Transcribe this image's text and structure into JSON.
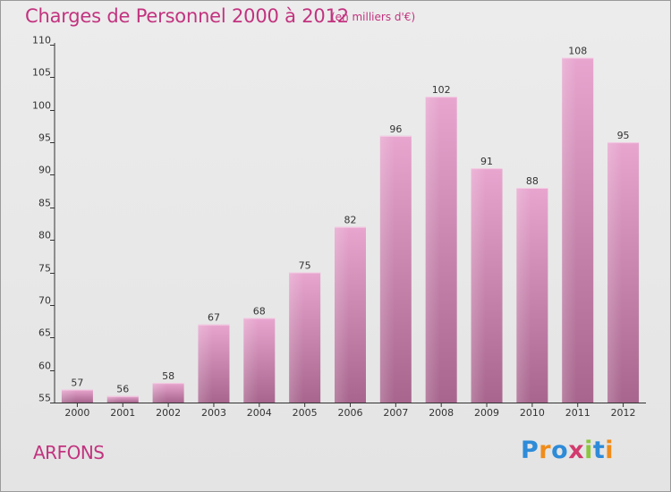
{
  "header": {
    "title": "Charges de Personnel 2000 à 2012",
    "subtitle": "(en milliers d'€)"
  },
  "footer": {
    "commune": "ARFONS",
    "logo": "Proxiti",
    "logo_letters": [
      "P",
      "r",
      "o",
      "x",
      "i",
      "t",
      "i"
    ],
    "logo_colors": [
      "#2e8bd8",
      "#f08c1a",
      "#2e8bd8",
      "#d23a6e",
      "#8cc63f",
      "#2e8bd8",
      "#f08c1a"
    ]
  },
  "colors": {
    "accent": "#c2337f",
    "bar_top": "#e8a6cf",
    "bar_bottom": "#a8668e",
    "axis": "#333333"
  },
  "chart_data": {
    "type": "bar",
    "title": "Charges de Personnel 2000 à 2012",
    "subtitle": "(en milliers d'€)",
    "categories": [
      "2000",
      "2001",
      "2002",
      "2003",
      "2004",
      "2005",
      "2006",
      "2007",
      "2008",
      "2009",
      "2010",
      "2011",
      "2012"
    ],
    "values": [
      57,
      56,
      58,
      67,
      68,
      75,
      82,
      96,
      102,
      91,
      88,
      108,
      95
    ],
    "ylim": [
      55,
      110
    ],
    "yticks": [
      55,
      60,
      65,
      70,
      75,
      80,
      85,
      90,
      95,
      100,
      105,
      110
    ],
    "grid": false,
    "data_labels": true
  }
}
